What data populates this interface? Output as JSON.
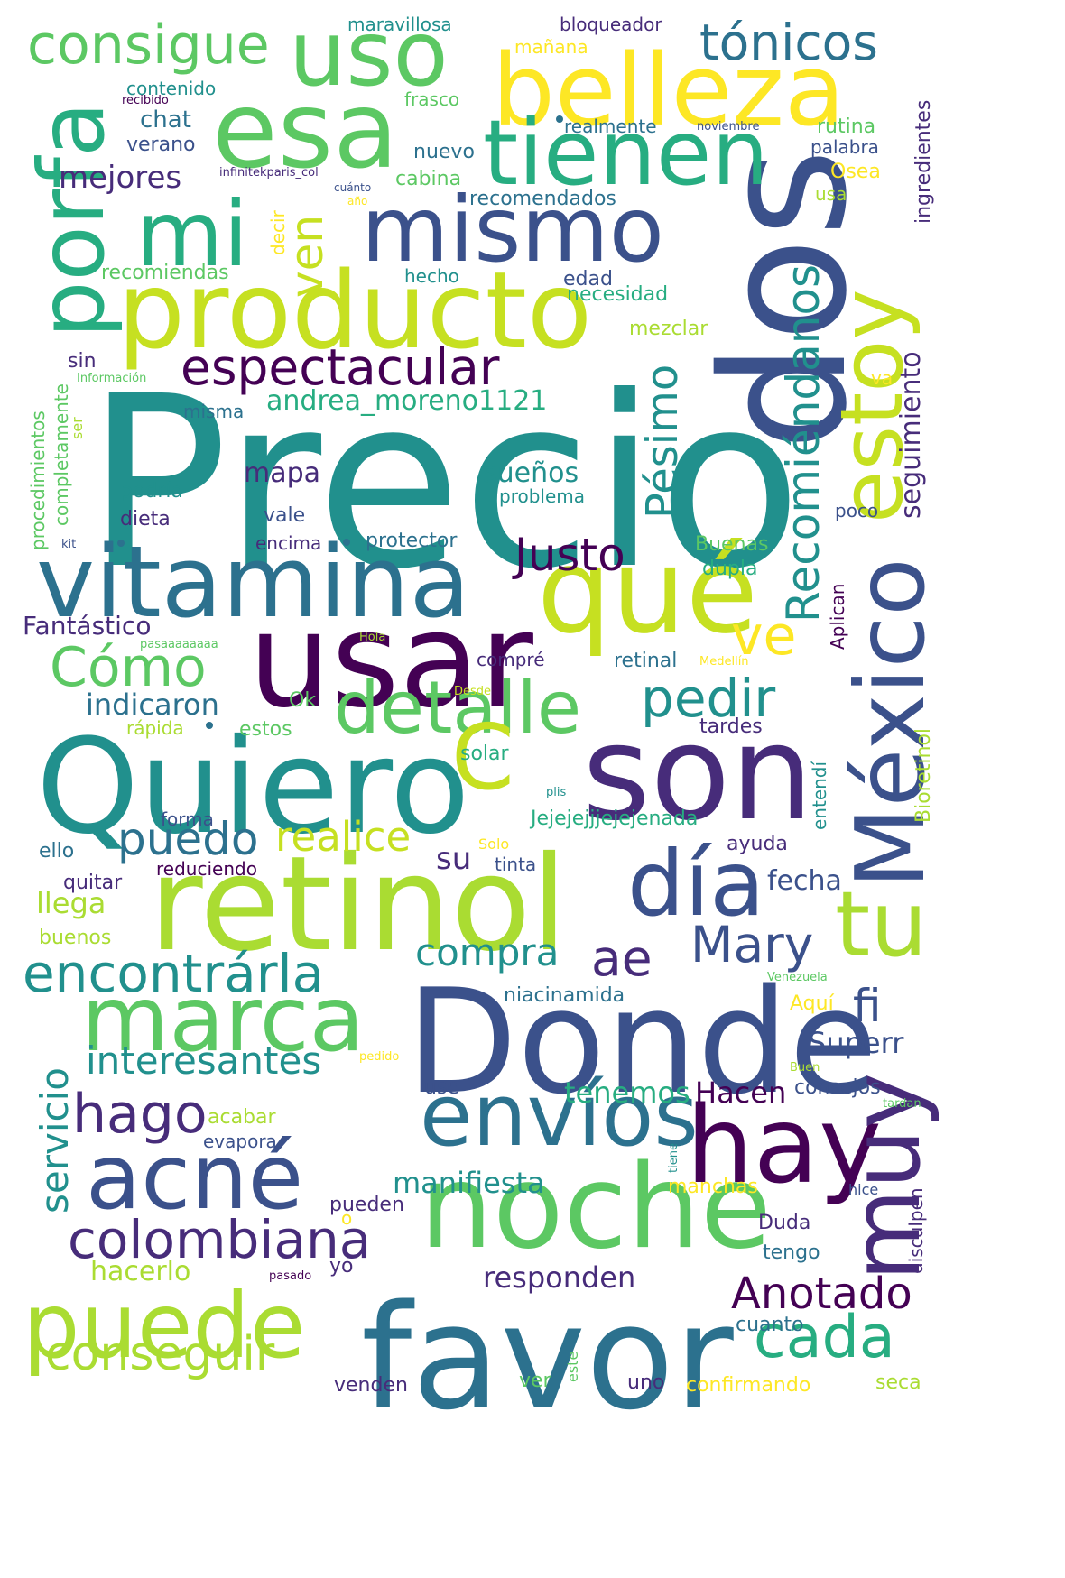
{
  "colors": {
    "background": "#ffffff",
    "palette": [
      "#440154",
      "#472c7a",
      "#3b518b",
      "#2c718e",
      "#21908d",
      "#27ad81",
      "#5cc863",
      "#aadc32",
      "#fde725"
    ]
  },
  "words": [
    {
      "text": "Precio",
      "color": "#21908d"
    },
    {
      "text": "dos",
      "color": "#3b518b"
    },
    {
      "text": "Donde",
      "color": "#3b518b"
    },
    {
      "text": "favor",
      "color": "#2c718e"
    },
    {
      "text": "usar",
      "color": "#440154"
    },
    {
      "text": "Quiero",
      "color": "#21908d"
    },
    {
      "text": "son",
      "color": "#472c7a"
    },
    {
      "text": "retinol",
      "color": "#aadc32"
    },
    {
      "text": "vitamina",
      "color": "#2c718e"
    },
    {
      "text": "México",
      "color": "#3b518b"
    },
    {
      "text": "qué",
      "color": "#c6e021"
    },
    {
      "text": "producto",
      "color": "#c6e021"
    },
    {
      "text": "mismo",
      "color": "#3b518b"
    },
    {
      "text": "esa",
      "color": "#5cc863"
    },
    {
      "text": "belleza",
      "color": "#fde725"
    },
    {
      "text": "tienen",
      "color": "#27ad81"
    },
    {
      "text": "uso",
      "color": "#5cc863"
    },
    {
      "text": "porfa",
      "color": "#27ad81"
    },
    {
      "text": "mi",
      "color": "#27ad81"
    },
    {
      "text": "estoy",
      "color": "#c6e021"
    },
    {
      "text": "noche",
      "color": "#5cc863"
    },
    {
      "text": "hay",
      "color": "#440154"
    },
    {
      "text": "muy",
      "color": "#472c7a"
    },
    {
      "text": "envíos",
      "color": "#2c718e"
    },
    {
      "text": "acné",
      "color": "#3b518b"
    },
    {
      "text": "marca",
      "color": "#5cc863"
    },
    {
      "text": "puede",
      "color": "#aadc32"
    },
    {
      "text": "día",
      "color": "#3b518b"
    },
    {
      "text": "tu",
      "color": "#aadc32"
    },
    {
      "text": "detalle",
      "color": "#5cc863"
    },
    {
      "text": "C",
      "color": "#c6e021"
    },
    {
      "text": "consigue",
      "color": "#5cc863"
    },
    {
      "text": "tónicos",
      "color": "#2c718e"
    },
    {
      "text": "espectacular",
      "color": "#440154"
    },
    {
      "text": "Recomiéndanos",
      "color": "#21908d"
    },
    {
      "text": "ven",
      "color": "#c6e021"
    },
    {
      "text": "ve",
      "color": "#fde725"
    },
    {
      "text": "Pésimo",
      "color": "#21908d"
    },
    {
      "text": "Justo",
      "color": "#440154"
    },
    {
      "text": "Cómo",
      "color": "#5cc863"
    },
    {
      "text": "pedir",
      "color": "#21908d"
    },
    {
      "text": "encontrárla",
      "color": "#21908d"
    },
    {
      "text": "colombiana",
      "color": "#472c7a"
    },
    {
      "text": "cada",
      "color": "#27ad81"
    },
    {
      "text": "Anotado",
      "color": "#440154"
    },
    {
      "text": "Mary",
      "color": "#3b518b"
    },
    {
      "text": "ae",
      "color": "#472c7a"
    },
    {
      "text": "fi",
      "color": "#3b518b"
    },
    {
      "text": "hago",
      "color": "#472c7a"
    },
    {
      "text": "conseguir",
      "color": "#aadc32"
    },
    {
      "text": "interesantes",
      "color": "#21908d"
    },
    {
      "text": "servicio",
      "color": "#21908d"
    },
    {
      "text": "compra",
      "color": "#21908d"
    },
    {
      "text": "puedo",
      "color": "#2c718e"
    },
    {
      "text": "realice",
      "color": "#c6e021"
    },
    {
      "text": "mapa",
      "color": "#472c7a"
    },
    {
      "text": "sueños",
      "color": "#21908d"
    },
    {
      "text": "andrea_moreno1121",
      "color": "#27ad81"
    },
    {
      "text": "mejores",
      "color": "#472c7a"
    },
    {
      "text": "seguimiento",
      "color": "#472c7a"
    },
    {
      "text": "Fantástico",
      "color": "#472c7a"
    },
    {
      "text": "indicaron",
      "color": "#2c718e"
    },
    {
      "text": "manifiesta",
      "color": "#21908d"
    },
    {
      "text": "responden",
      "color": "#472c7a"
    },
    {
      "text": "tenemos",
      "color": "#27ad81"
    },
    {
      "text": "Hacen",
      "color": "#440154"
    },
    {
      "text": "Superr",
      "color": "#3b518b"
    },
    {
      "text": "llega",
      "color": "#aadc32"
    },
    {
      "text": "su",
      "color": "#472c7a"
    },
    {
      "text": "fecha",
      "color": "#3b518b"
    },
    {
      "text": "hacerlo",
      "color": "#aadc32"
    },
    {
      "text": "ingredientes",
      "color": "#472c7a"
    },
    {
      "text": "recomendados",
      "color": "#2c718e"
    },
    {
      "text": "chat",
      "color": "#2c718e"
    },
    {
      "text": "verano",
      "color": "#3b518b"
    },
    {
      "text": "contenido",
      "color": "#21908d"
    },
    {
      "text": "recibido",
      "color": "#440154"
    },
    {
      "text": "maravillosa",
      "color": "#21908d"
    },
    {
      "text": "bloqueador",
      "color": "#472c7a"
    },
    {
      "text": "mañana",
      "color": "#fde725"
    },
    {
      "text": "frasco",
      "color": "#5cc863"
    },
    {
      "text": "realmente",
      "color": "#2c718e"
    },
    {
      "text": "noviembre",
      "color": "#3b518b"
    },
    {
      "text": "rutina",
      "color": "#5cc863"
    },
    {
      "text": "palabra",
      "color": "#3b518b"
    },
    {
      "text": "nuevo",
      "color": "#2c718e"
    },
    {
      "text": "Osea",
      "color": "#fde725"
    },
    {
      "text": "usa",
      "color": "#aadc32"
    },
    {
      "text": "infinitekparis_col",
      "color": "#472c7a"
    },
    {
      "text": "cuánto",
      "color": "#3b518b"
    },
    {
      "text": "año",
      "color": "#fde725"
    },
    {
      "text": "cabina",
      "color": "#5cc863"
    },
    {
      "text": "decir",
      "color": "#fde725"
    },
    {
      "text": "recomiendas",
      "color": "#5cc863"
    },
    {
      "text": "hecho",
      "color": "#21908d"
    },
    {
      "text": "edad",
      "color": "#3b518b"
    },
    {
      "text": "necesidad",
      "color": "#27ad81"
    },
    {
      "text": "mezclar",
      "color": "#aadc32"
    },
    {
      "text": "sin",
      "color": "#472c7a"
    },
    {
      "text": "Información",
      "color": "#5cc863"
    },
    {
      "text": "procedimientos",
      "color": "#5cc863"
    },
    {
      "text": "completamente",
      "color": "#5cc863"
    },
    {
      "text": "ser",
      "color": "#aadc32"
    },
    {
      "text": "misma",
      "color": "#2c718e"
    },
    {
      "text": "va",
      "color": "#fde725"
    },
    {
      "text": "problema",
      "color": "#21908d"
    },
    {
      "text": "poco",
      "color": "#3b518b"
    },
    {
      "text": "podría",
      "color": "#21908d"
    },
    {
      "text": "vale",
      "color": "#3b518b"
    },
    {
      "text": "dieta",
      "color": "#472c7a"
    },
    {
      "text": "kit",
      "color": "#3b518b"
    },
    {
      "text": "encima",
      "color": "#472c7a"
    },
    {
      "text": "protector",
      "color": "#2c718e"
    },
    {
      "text": "Buenas",
      "color": "#5cc863"
    },
    {
      "text": "dupla",
      "color": "#27ad81"
    },
    {
      "text": "Aplican",
      "color": "#440154"
    },
    {
      "text": "pasaaaaaaaa",
      "color": "#5cc863"
    },
    {
      "text": "Hola",
      "color": "#aadc32"
    },
    {
      "text": "compré",
      "color": "#472c7a"
    },
    {
      "text": "retinal",
      "color": "#2c718e"
    },
    {
      "text": "Medellín",
      "color": "#fde725"
    },
    {
      "text": "Ok",
      "color": "#5cc863"
    },
    {
      "text": "Desde",
      "color": "#c6e021"
    },
    {
      "text": "rápida",
      "color": "#aadc32"
    },
    {
      "text": "estos",
      "color": "#5cc863"
    },
    {
      "text": "tardes",
      "color": "#472c7a"
    },
    {
      "text": "Bioretinol",
      "color": "#aadc32"
    },
    {
      "text": "solar",
      "color": "#27ad81"
    },
    {
      "text": "entendí",
      "color": "#21908d"
    },
    {
      "text": "plis",
      "color": "#21908d"
    },
    {
      "text": "forma",
      "color": "#3b518b"
    },
    {
      "text": "Jejejejjjejejenada",
      "color": "#27ad81"
    },
    {
      "text": "ayuda",
      "color": "#472c7a"
    },
    {
      "text": "ello",
      "color": "#2c718e"
    },
    {
      "text": "Solo",
      "color": "#fde725"
    },
    {
      "text": "tinta",
      "color": "#3b518b"
    },
    {
      "text": "reduciendo",
      "color": "#440154"
    },
    {
      "text": "quitar",
      "color": "#472c7a"
    },
    {
      "text": "buenos",
      "color": "#aadc32"
    },
    {
      "text": "Venezuela",
      "color": "#5cc863"
    },
    {
      "text": "niacinamida",
      "color": "#2c718e"
    },
    {
      "text": "Aquí",
      "color": "#fde725"
    },
    {
      "text": "pedido",
      "color": "#fde725"
    },
    {
      "text": "Buen",
      "color": "#aadc32"
    },
    {
      "text": "use",
      "color": "#3b518b"
    },
    {
      "text": "consejos",
      "color": "#3b518b"
    },
    {
      "text": "tardan",
      "color": "#5cc863"
    },
    {
      "text": "acabar",
      "color": "#aadc32"
    },
    {
      "text": "evapora",
      "color": "#3b518b"
    },
    {
      "text": "tiene",
      "color": "#21908d"
    },
    {
      "text": "manchas",
      "color": "#fde725"
    },
    {
      "text": "hice",
      "color": "#3b518b"
    },
    {
      "text": "disculpen",
      "color": "#472c7a"
    },
    {
      "text": "pueden",
      "color": "#472c7a"
    },
    {
      "text": "o",
      "color": "#fde725"
    },
    {
      "text": "Duda",
      "color": "#472c7a"
    },
    {
      "text": "tengo",
      "color": "#2c718e"
    },
    {
      "text": "yo",
      "color": "#472c7a"
    },
    {
      "text": "pasado",
      "color": "#440154"
    },
    {
      "text": "cuanto",
      "color": "#2c718e"
    },
    {
      "text": "ver",
      "color": "#5cc863"
    },
    {
      "text": "este",
      "color": "#5cc863"
    },
    {
      "text": "uno",
      "color": "#472c7a"
    },
    {
      "text": "venden",
      "color": "#472c7a"
    },
    {
      "text": "confirmando",
      "color": "#fde725"
    },
    {
      "text": "seca",
      "color": "#aadc32"
    }
  ]
}
